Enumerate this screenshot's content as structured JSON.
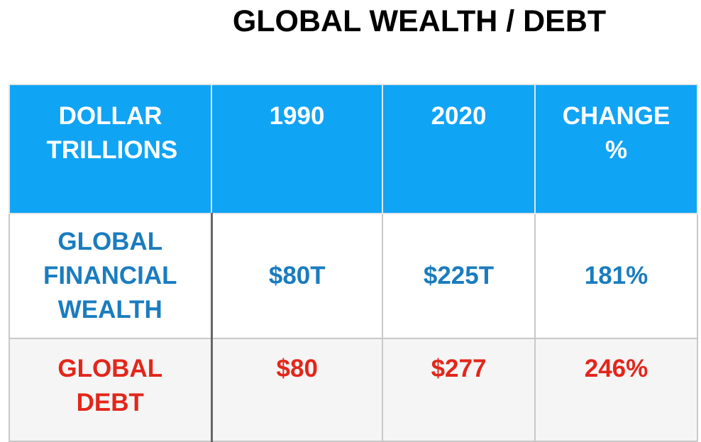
{
  "title": "GLOBAL WEALTH / DEBT",
  "table": {
    "header": [
      "DOLLAR TRILLIONS",
      "1990",
      "2020",
      "CHANGE %"
    ],
    "rows": [
      [
        "GLOBAL FINANCIAL WEALTH",
        "$80T",
        "$225T",
        "181%"
      ],
      [
        "GLOBAL DEBT",
        "$80",
        "$277",
        "246%"
      ]
    ]
  }
}
